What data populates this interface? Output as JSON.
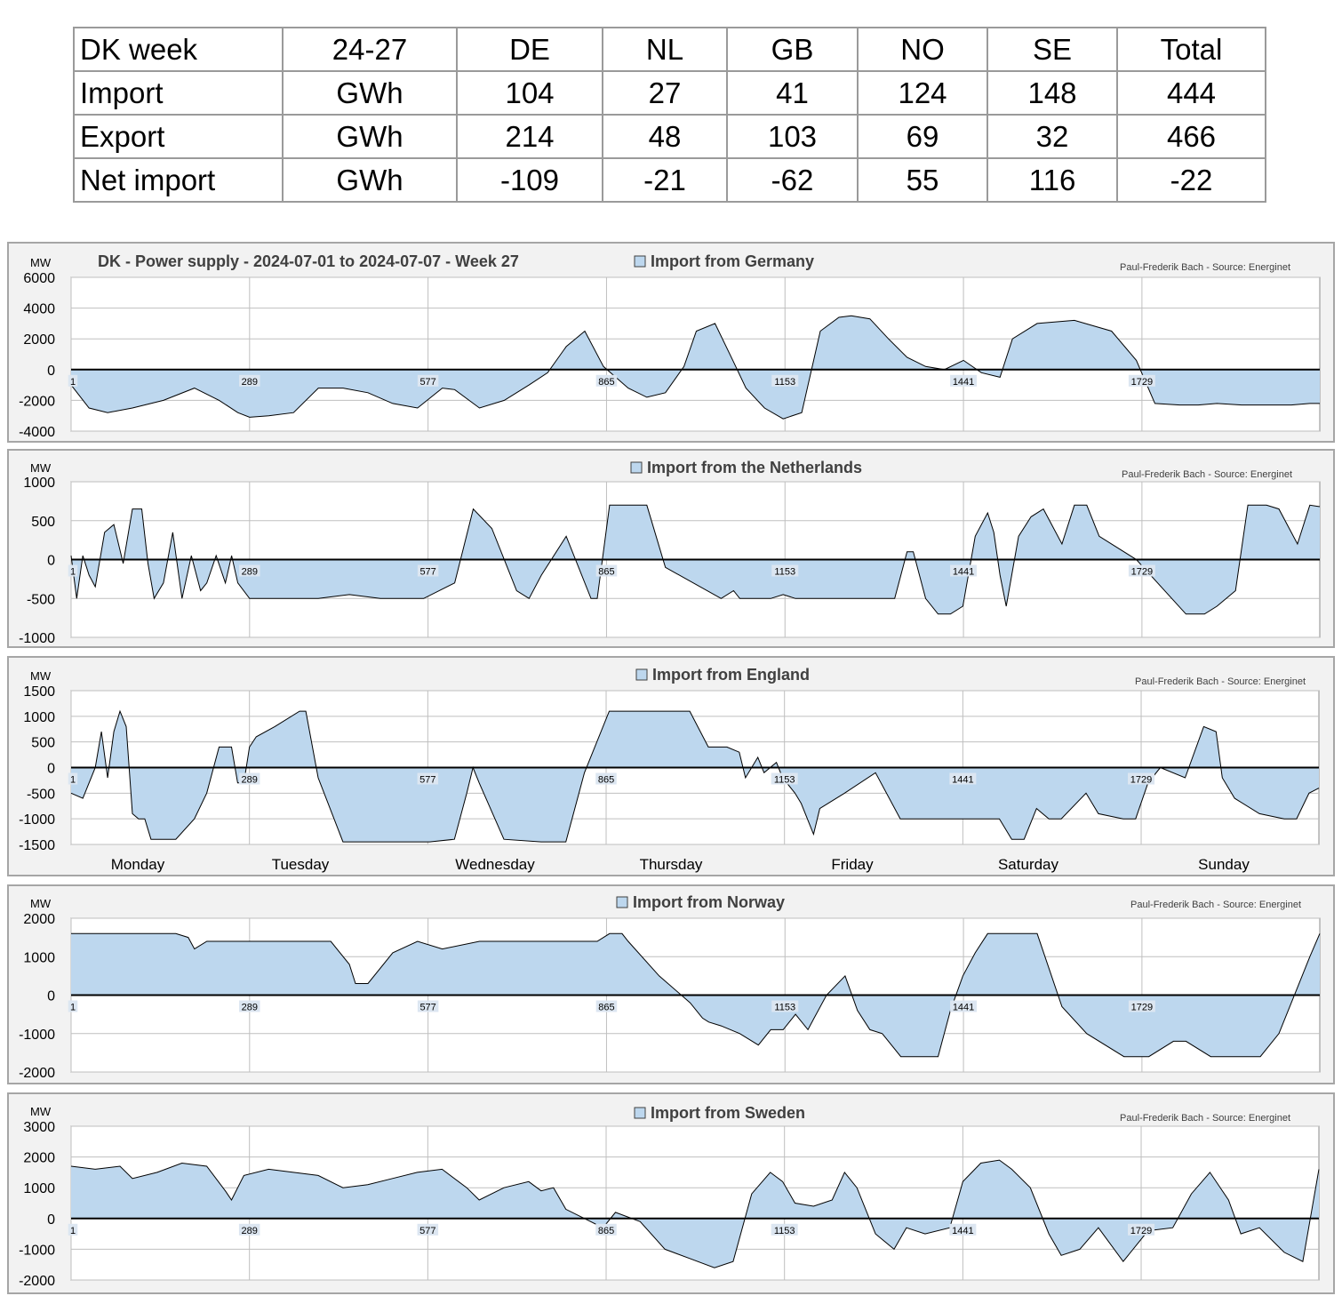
{
  "table": {
    "header": [
      "DK week",
      "24-27",
      "DE",
      "NL",
      "GB",
      "NO",
      "SE",
      "Total"
    ],
    "rows": [
      [
        "Import",
        "GWh",
        "104",
        "27",
        "41",
        "124",
        "148",
        "444"
      ],
      [
        "Export",
        "GWh",
        "214",
        "48",
        "103",
        "69",
        "32",
        "466"
      ],
      [
        "Net import",
        "GWh",
        "-109",
        "-21",
        "-62",
        "55",
        "116",
        "-22"
      ]
    ]
  },
  "credit": "Paul-Frederik Bach - Source: Energinet",
  "unit": "MW",
  "colors": {
    "fill": "#bdd7ee",
    "line": "#000000",
    "grid": "#bfbfbf",
    "panel": "#f2f2f2"
  },
  "days": [
    "Monday",
    "Tuesday",
    "Wednesday",
    "Thursday",
    "Friday",
    "Saturday",
    "Sunday"
  ],
  "chart_data": [
    {
      "type": "area",
      "title": "DK - Power supply - 2024-07-01 to 2024-07-07 - Week 27",
      "legend": "Import from Germany",
      "ylabel": "MW",
      "ylim": [
        -4000,
        6000
      ],
      "yticks": [
        -4000,
        -2000,
        0,
        2000,
        4000,
        6000
      ],
      "xticks": [
        1,
        289,
        577,
        865,
        1153,
        1441,
        1729
      ],
      "xlim": [
        1,
        2016
      ],
      "x": [
        1,
        30,
        60,
        100,
        150,
        200,
        240,
        270,
        289,
        320,
        360,
        400,
        440,
        480,
        520,
        560,
        600,
        620,
        660,
        700,
        740,
        770,
        800,
        830,
        860,
        900,
        930,
        960,
        990,
        1010,
        1040,
        1070,
        1090,
        1120,
        1150,
        1180,
        1210,
        1240,
        1260,
        1290,
        1320,
        1350,
        1380,
        1410,
        1441,
        1470,
        1500,
        1520,
        1560,
        1620,
        1680,
        1720,
        1750,
        1790,
        1820,
        1850,
        1890,
        1930,
        1960,
        1970,
        2000,
        2016
      ],
      "values": [
        -1000,
        -2500,
        -2800,
        -2500,
        -2000,
        -1200,
        -2000,
        -2800,
        -3100,
        -3000,
        -2800,
        -1200,
        -1200,
        -1500,
        -2200,
        -2500,
        -1200,
        -1300,
        -2500,
        -2000,
        -1000,
        -200,
        1500,
        2500,
        200,
        -1200,
        -1800,
        -1500,
        200,
        2500,
        3000,
        500,
        -1200,
        -2500,
        -3200,
        -2800,
        2500,
        3400,
        3500,
        3300,
        2000,
        800,
        200,
        0,
        600,
        -200,
        -500,
        2000,
        3000,
        3200,
        2500,
        600,
        -2200,
        -2300,
        -2300,
        -2200,
        -2300,
        -2300,
        -2300,
        -2300,
        -2200,
        -2200
      ]
    },
    {
      "type": "area",
      "legend": "Import from the Netherlands",
      "ylabel": "MW",
      "ylim": [
        -1000,
        1000
      ],
      "yticks": [
        -1000,
        -500,
        0,
        500,
        1000
      ],
      "xticks": [
        1,
        289,
        577,
        865,
        1153,
        1441,
        1729
      ],
      "xlim": [
        1,
        2016
      ],
      "x": [
        1,
        10,
        20,
        30,
        40,
        55,
        70,
        85,
        100,
        115,
        125,
        135,
        150,
        165,
        180,
        195,
        210,
        220,
        235,
        250,
        260,
        270,
        289,
        300,
        330,
        400,
        450,
        500,
        570,
        620,
        650,
        680,
        720,
        740,
        760,
        800,
        840,
        850,
        870,
        890,
        930,
        960,
        1050,
        1070,
        1080,
        1100,
        1130,
        1150,
        1170,
        1200,
        1250,
        1300,
        1330,
        1350,
        1360,
        1380,
        1400,
        1420,
        1440,
        1460,
        1480,
        1490,
        1500,
        1510,
        1530,
        1550,
        1570,
        1600,
        1620,
        1640,
        1660,
        1720,
        1800,
        1830,
        1850,
        1880,
        1900,
        1930,
        1950,
        1980,
        2000,
        2016
      ],
      "values": [
        50,
        -500,
        50,
        -200,
        -350,
        350,
        450,
        -50,
        650,
        650,
        -50,
        -500,
        -300,
        350,
        -500,
        50,
        -400,
        -300,
        50,
        -300,
        50,
        -300,
        -500,
        -500,
        -500,
        -500,
        -450,
        -500,
        -500,
        -300,
        650,
        400,
        -400,
        -500,
        -200,
        300,
        -500,
        -500,
        700,
        700,
        700,
        -100,
        -500,
        -400,
        -500,
        -500,
        -500,
        -450,
        -500,
        -500,
        -500,
        -500,
        -500,
        100,
        100,
        -500,
        -700,
        -700,
        -600,
        300,
        600,
        350,
        -200,
        -600,
        300,
        550,
        650,
        200,
        700,
        700,
        300,
        0,
        -700,
        -700,
        -600,
        -400,
        700,
        700,
        650,
        200,
        700,
        680
      ]
    },
    {
      "type": "area",
      "legend": "Import from England",
      "ylabel": "MW",
      "ylim": [
        -1500,
        1500
      ],
      "yticks": [
        -1500,
        -1000,
        -500,
        0,
        500,
        1000,
        1500
      ],
      "xticks": [
        1,
        289,
        577,
        865,
        1153,
        1441,
        1729
      ],
      "xlim": [
        1,
        2016
      ],
      "x": [
        1,
        20,
        40,
        50,
        60,
        70,
        80,
        90,
        100,
        110,
        120,
        130,
        150,
        170,
        200,
        220,
        240,
        260,
        270,
        280,
        289,
        300,
        330,
        370,
        380,
        400,
        440,
        500,
        580,
        620,
        640,
        650,
        660,
        700,
        760,
        800,
        830,
        870,
        950,
        1000,
        1030,
        1060,
        1080,
        1090,
        1110,
        1120,
        1140,
        1150,
        1170,
        1180,
        1200,
        1210,
        1250,
        1300,
        1340,
        1370,
        1400,
        1440,
        1480,
        1500,
        1520,
        1540,
        1560,
        1580,
        1600,
        1640,
        1660,
        1700,
        1720,
        1740,
        1760,
        1800,
        1830,
        1850,
        1860,
        1880,
        1920,
        1960,
        1980,
        2000,
        2016
      ],
      "values": [
        -500,
        -600,
        0,
        700,
        -200,
        700,
        1100,
        800,
        -900,
        -1000,
        -1000,
        -1400,
        -1400,
        -1400,
        -1000,
        -500,
        400,
        400,
        -300,
        -300,
        400,
        600,
        800,
        1100,
        1100,
        -200,
        -1450,
        -1450,
        -1450,
        -1400,
        -500,
        0,
        -300,
        -1400,
        -1450,
        -1450,
        -100,
        1100,
        1100,
        1100,
        400,
        400,
        300,
        -200,
        200,
        -100,
        100,
        -200,
        -500,
        -700,
        -1300,
        -800,
        -500,
        -100,
        -1000,
        -1000,
        -1000,
        -1000,
        -1000,
        -1000,
        -1400,
        -1400,
        -800,
        -1000,
        -1000,
        -500,
        -900,
        -1000,
        -1000,
        -300,
        0,
        -200,
        800,
        700,
        -200,
        -600,
        -900,
        -1000,
        -1000,
        -500,
        -400
      ]
    },
    {
      "type": "area",
      "legend": "Import from Norway",
      "ylabel": "MW",
      "ylim": [
        -2000,
        2000
      ],
      "yticks": [
        -2000,
        -1000,
        0,
        1000,
        2000
      ],
      "xticks": [
        1,
        289,
        577,
        865,
        1153,
        1441,
        1729
      ],
      "xlim": [
        1,
        2016
      ],
      "x": [
        1,
        100,
        170,
        190,
        200,
        220,
        280,
        330,
        400,
        420,
        450,
        460,
        480,
        520,
        560,
        600,
        660,
        700,
        800,
        850,
        870,
        890,
        900,
        950,
        1000,
        1020,
        1030,
        1050,
        1080,
        1110,
        1130,
        1150,
        1170,
        1190,
        1200,
        1220,
        1250,
        1270,
        1290,
        1310,
        1340,
        1370,
        1400,
        1420,
        1440,
        1460,
        1480,
        1500,
        1530,
        1560,
        1600,
        1640,
        1700,
        1740,
        1780,
        1800,
        1840,
        1880,
        1920,
        1950,
        1980,
        2000,
        2016
      ],
      "values": [
        1600,
        1600,
        1600,
        1500,
        1200,
        1400,
        1400,
        1400,
        1400,
        1400,
        800,
        300,
        300,
        1100,
        1400,
        1200,
        1400,
        1400,
        1400,
        1400,
        1600,
        1600,
        1400,
        500,
        -200,
        -600,
        -700,
        -800,
        -1000,
        -1300,
        -900,
        -900,
        -500,
        -900,
        -600,
        0,
        500,
        -400,
        -900,
        -1000,
        -1600,
        -1600,
        -1600,
        -400,
        500,
        1100,
        1600,
        1600,
        1600,
        1600,
        -300,
        -1000,
        -1600,
        -1600,
        -1200,
        -1200,
        -1600,
        -1600,
        -1600,
        -1000,
        200,
        1000,
        1600
      ]
    },
    {
      "type": "area",
      "legend": "Import from Sweden",
      "ylabel": "MW",
      "ylim": [
        -2000,
        3000
      ],
      "yticks": [
        -2000,
        -1000,
        0,
        1000,
        2000,
        3000
      ],
      "xticks": [
        1,
        289,
        577,
        865,
        1153,
        1441,
        1729
      ],
      "xlim": [
        1,
        2016
      ],
      "x": [
        1,
        40,
        80,
        100,
        140,
        180,
        220,
        250,
        260,
        280,
        320,
        360,
        400,
        440,
        480,
        520,
        560,
        600,
        640,
        660,
        700,
        740,
        760,
        780,
        800,
        830,
        860,
        880,
        920,
        960,
        1000,
        1040,
        1070,
        1100,
        1130,
        1150,
        1170,
        1200,
        1230,
        1250,
        1270,
        1300,
        1330,
        1350,
        1380,
        1420,
        1441,
        1470,
        1500,
        1520,
        1550,
        1580,
        1600,
        1630,
        1660,
        1700,
        1740,
        1780,
        1810,
        1840,
        1870,
        1890,
        1920,
        1960,
        1990,
        2016
      ],
      "values": [
        1700,
        1600,
        1700,
        1300,
        1500,
        1800,
        1700,
        900,
        600,
        1400,
        1600,
        1500,
        1400,
        1000,
        1100,
        1300,
        1500,
        1600,
        1000,
        600,
        1000,
        1200,
        900,
        1000,
        300,
        0,
        -300,
        200,
        -100,
        -1000,
        -1300,
        -1600,
        -1400,
        800,
        1500,
        1200,
        500,
        400,
        600,
        1500,
        1000,
        -500,
        -1000,
        -300,
        -500,
        -300,
        1200,
        1800,
        1900,
        1600,
        1000,
        -500,
        -1200,
        -1000,
        -300,
        -1400,
        -400,
        -300,
        800,
        1500,
        600,
        -500,
        -300,
        -1100,
        -1400,
        1600
      ]
    }
  ]
}
